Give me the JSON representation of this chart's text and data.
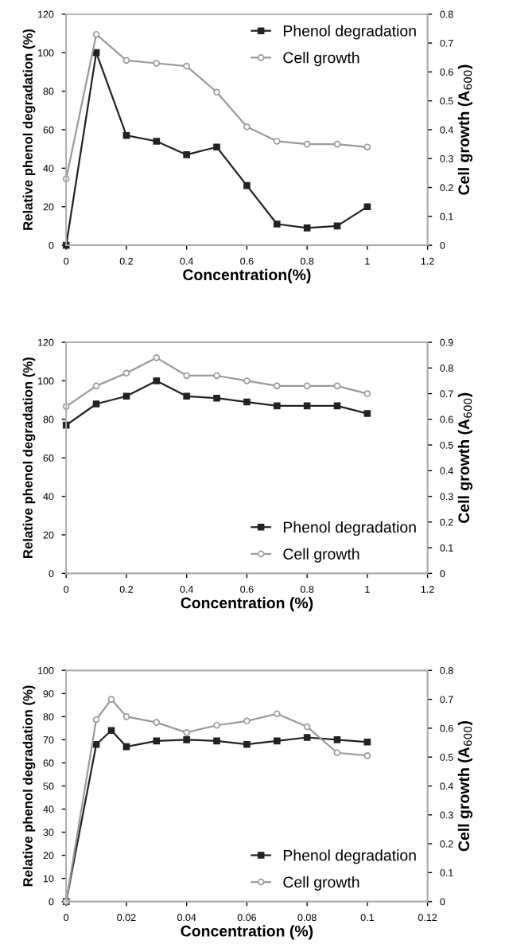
{
  "chart_data": [
    {
      "type": "line",
      "xlabel": "Concentration(%)",
      "ylabel": "Relative phenol degradation (%)",
      "y2label": "Cell growth (A$_{600}$)",
      "x": [
        0,
        0.1,
        0.2,
        0.3,
        0.4,
        0.5,
        0.6,
        0.7,
        0.8,
        0.9,
        1
      ],
      "xlim": [
        0,
        1.2
      ],
      "xticks": [
        0,
        0.2,
        0.4,
        0.6,
        0.8,
        1,
        1.2
      ],
      "ylim": [
        0,
        120
      ],
      "yticks": [
        0,
        20,
        40,
        60,
        80,
        100,
        120
      ],
      "y2lim": [
        0,
        0.8
      ],
      "y2ticks": [
        0,
        0.1,
        0.2,
        0.3,
        0.4,
        0.5,
        0.6,
        0.7,
        0.8
      ],
      "legend": "top right",
      "series": [
        {
          "name": "Phenol degradation",
          "color": "#222222",
          "marker": "square",
          "values": [
            0,
            100,
            57,
            54,
            47,
            51,
            31,
            11,
            9,
            10,
            20
          ]
        },
        {
          "name": "Cell growth",
          "color": "#9a9a9a",
          "marker": "circle",
          "axis": "y2",
          "values": [
            0.23,
            0.73,
            0.64,
            0.63,
            0.62,
            0.53,
            0.41,
            0.36,
            0.35,
            0.35,
            0.34
          ]
        }
      ]
    },
    {
      "type": "line",
      "xlabel": "Concentration (%)",
      "ylabel": "Relative phenol degradation (%)",
      "y2label": "Cell growth (A$_{600}$)",
      "x": [
        0,
        0.1,
        0.2,
        0.3,
        0.4,
        0.5,
        0.6,
        0.7,
        0.8,
        0.9,
        1
      ],
      "xlim": [
        0,
        1.2
      ],
      "xticks": [
        0,
        0.2,
        0.4,
        0.6,
        0.8,
        1,
        1.2
      ],
      "ylim": [
        0,
        120
      ],
      "yticks": [
        0,
        20,
        40,
        60,
        80,
        100,
        120
      ],
      "y2lim": [
        0,
        0.9
      ],
      "y2ticks": [
        0,
        0.1,
        0.2,
        0.3,
        0.4,
        0.5,
        0.6,
        0.7,
        0.8,
        0.9
      ],
      "legend": "bottom right",
      "series": [
        {
          "name": "Phenol degradation",
          "color": "#222222",
          "marker": "square",
          "values": [
            77,
            88,
            92,
            100,
            92,
            91,
            89,
            87,
            87,
            87,
            83
          ]
        },
        {
          "name": "Cell growth",
          "color": "#9a9a9a",
          "marker": "circle",
          "axis": "y2",
          "values": [
            0.65,
            0.73,
            0.78,
            0.84,
            0.77,
            0.77,
            0.75,
            0.73,
            0.73,
            0.73,
            0.7
          ]
        }
      ]
    },
    {
      "type": "line",
      "xlabel": "Concentration (%)",
      "ylabel": "Relative phenol degradation (%)",
      "y2label": "Cell growth (A$_{600}$)",
      "x": [
        0,
        0.01,
        0.015,
        0.02,
        0.03,
        0.04,
        0.05,
        0.06,
        0.07,
        0.08,
        0.09,
        0.1
      ],
      "xlim": [
        0,
        0.12
      ],
      "xticks": [
        0,
        0.02,
        0.04,
        0.06,
        0.08,
        0.1,
        0.12
      ],
      "ylim": [
        0,
        100
      ],
      "yticks": [
        0,
        10,
        20,
        30,
        40,
        50,
        60,
        70,
        80,
        90,
        100
      ],
      "y2lim": [
        0,
        0.8
      ],
      "y2ticks": [
        0,
        0.1,
        0.2,
        0.3,
        0.4,
        0.5,
        0.6,
        0.7,
        0.8
      ],
      "legend": "bottom right",
      "series": [
        {
          "name": "Phenol degradation",
          "color": "#222222",
          "marker": "square",
          "values": [
            0,
            68,
            74,
            67,
            69.5,
            70,
            69.5,
            68,
            69.5,
            71,
            70,
            69
          ]
        },
        {
          "name": "Cell growth",
          "color": "#9a9a9a",
          "marker": "circle",
          "axis": "y2",
          "values": [
            0,
            0.63,
            0.7,
            0.64,
            0.62,
            0.585,
            0.61,
            0.625,
            0.65,
            0.605,
            0.515,
            0.505
          ]
        }
      ]
    }
  ]
}
